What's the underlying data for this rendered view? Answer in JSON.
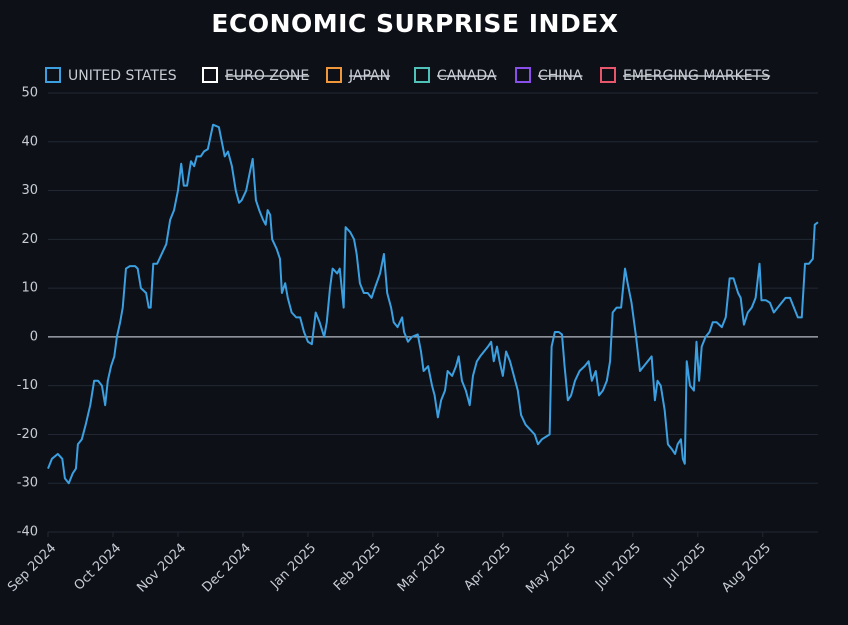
{
  "chart_data": {
    "type": "line",
    "title": "ECONOMIC SURPRISE INDEX",
    "x": [
      0,
      0.06,
      0.15,
      0.22,
      0.26,
      0.32,
      0.38,
      0.43,
      0.46,
      0.52,
      0.58,
      0.65,
      0.71,
      0.77,
      0.83,
      0.88,
      0.92,
      0.97,
      1.02,
      1.06,
      1.11,
      1.15,
      1.2,
      1.26,
      1.34,
      1.38,
      1.43,
      1.51,
      1.55,
      1.58,
      1.62,
      1.68,
      1.75,
      1.82,
      1.88,
      1.94,
      2.0,
      2.05,
      2.09,
      2.14,
      2.2,
      2.25,
      2.29,
      2.35,
      2.4,
      2.46,
      2.54,
      2.63,
      2.69,
      2.72,
      2.77,
      2.83,
      2.89,
      2.94,
      2.98,
      3.05,
      3.11,
      3.15,
      3.2,
      3.25,
      3.31,
      3.35,
      3.38,
      3.42,
      3.45,
      3.52,
      3.57,
      3.6,
      3.65,
      3.69,
      3.75,
      3.82,
      3.88,
      3.94,
      4.0,
      4.06,
      4.12,
      4.18,
      4.25,
      4.29,
      4.34,
      4.38,
      4.45,
      4.49,
      4.55,
      4.58,
      4.65,
      4.71,
      4.75,
      4.8,
      4.86,
      4.92,
      4.98,
      5.03,
      5.11,
      5.17,
      5.22,
      5.28,
      5.32,
      5.38,
      5.45,
      5.48,
      5.54,
      5.6,
      5.69,
      5.74,
      5.78,
      5.85,
      5.91,
      5.95,
      6.0,
      6.05,
      6.11,
      6.15,
      6.22,
      6.28,
      6.32,
      6.37,
      6.43,
      6.49,
      6.54,
      6.6,
      6.65,
      6.71,
      6.77,
      6.82,
      6.86,
      6.91,
      6.95,
      7.0,
      7.05,
      7.11,
      7.17,
      7.23,
      7.28,
      7.35,
      7.42,
      7.49,
      7.54,
      7.6,
      7.66,
      7.72,
      7.75,
      7.8,
      7.86,
      7.91,
      7.95,
      8.0,
      8.05,
      8.11,
      8.18,
      8.26,
      8.32,
      8.37,
      8.43,
      8.48,
      8.54,
      8.6,
      8.65,
      8.69,
      8.75,
      8.82,
      8.88,
      8.92,
      8.98,
      9.05,
      9.11,
      9.17,
      9.23,
      9.29,
      9.34,
      9.38,
      9.43,
      9.49,
      9.54,
      9.6,
      9.65,
      9.69,
      9.74,
      9.77,
      9.8,
      9.83,
      9.88,
      9.94,
      9.98,
      10.02,
      10.06,
      10.12,
      10.18,
      10.23,
      10.29,
      10.37,
      10.43,
      10.49,
      10.55,
      10.62,
      10.66,
      10.71,
      10.77,
      10.83,
      10.89,
      10.95,
      10.98,
      11.05,
      11.11,
      11.17,
      11.23,
      11.29,
      11.35,
      11.42,
      11.48,
      11.54,
      11.6,
      11.65,
      11.71,
      11.77,
      11.8,
      11.85
    ],
    "series": [
      {
        "name": "UNITED STATES",
        "color": "#3b9fe0",
        "values": [
          -27,
          -25,
          -24,
          -25,
          -29,
          -30,
          -28,
          -27,
          -22,
          -21,
          -18,
          -14,
          -9,
          -9,
          -10,
          -14,
          -9,
          -6,
          -4,
          0,
          3,
          6,
          14,
          14.5,
          14.5,
          14,
          10,
          9,
          6,
          6,
          15,
          15,
          17,
          19,
          24,
          26,
          30,
          35.5,
          31,
          31,
          36,
          35,
          37,
          37,
          38,
          38.5,
          43.5,
          43,
          39,
          37,
          38,
          35,
          30,
          27.5,
          28,
          30,
          34,
          36.5,
          28,
          26,
          24,
          23,
          26,
          25,
          20,
          18,
          16,
          9,
          11,
          8,
          5,
          4,
          4,
          1,
          -1,
          -1.5,
          5,
          3,
          0,
          3,
          10,
          14,
          13,
          14,
          6,
          22.5,
          21.5,
          20,
          17,
          11,
          9,
          9,
          8,
          10,
          13,
          17,
          9,
          6,
          3,
          2,
          4,
          1,
          -1,
          0,
          0.5,
          -3,
          -7,
          -6,
          -10,
          -12,
          -16.5,
          -13,
          -11,
          -7,
          -8,
          -6,
          -4,
          -9,
          -11,
          -14,
          -8,
          -5,
          -4,
          -3,
          -2,
          -1,
          -5,
          -2,
          -5,
          -8,
          -3,
          -5,
          -8,
          -11,
          -16,
          -18,
          -19,
          -20,
          -22,
          -21,
          -20.5,
          -20,
          -2,
          1,
          1,
          0.5,
          -6,
          -13,
          -12,
          -9,
          -7,
          -6,
          -5,
          -9,
          -7,
          -12,
          -11,
          -9,
          -5,
          5,
          6,
          6,
          14,
          11,
          7,
          0,
          -7,
          -6,
          -5,
          -4,
          -13,
          -9,
          -10,
          -15,
          -22,
          -23,
          -24,
          -22,
          -21,
          -25,
          -26,
          -5,
          -10,
          -11,
          -1,
          -9,
          -2,
          0,
          1,
          3,
          3,
          2,
          4,
          12,
          12,
          9,
          8,
          2.5,
          5,
          6,
          8,
          15,
          7.5,
          7.5,
          7,
          5,
          6,
          7,
          8,
          8,
          6,
          4,
          4,
          15,
          15,
          16,
          23,
          23.5
        ]
      },
      {
        "name": "EURO ZONE",
        "color": "#ffffff",
        "hidden": true
      },
      {
        "name": "JAPAN",
        "color": "#f0973b",
        "hidden": true
      },
      {
        "name": "CANADA",
        "color": "#4fc1b8",
        "hidden": true
      },
      {
        "name": "CHINA",
        "color": "#8a4fe8",
        "hidden": true
      },
      {
        "name": "EMERGING MARKETS",
        "color": "#e8566b",
        "hidden": true
      }
    ],
    "xlim": [
      0,
      11.85
    ],
    "xticks": [
      {
        "value": 0,
        "label": "Sep 2024"
      },
      {
        "value": 1,
        "label": "Oct 2024"
      },
      {
        "value": 2,
        "label": "Nov 2024"
      },
      {
        "value": 3,
        "label": "Dec 2024"
      },
      {
        "value": 4,
        "label": "Jan 2025"
      },
      {
        "value": 5,
        "label": "Feb 2025"
      },
      {
        "value": 6,
        "label": "Mar 2025"
      },
      {
        "value": 7,
        "label": "Apr 2025"
      },
      {
        "value": 8,
        "label": "May 2025"
      },
      {
        "value": 9,
        "label": "Jun 2025"
      },
      {
        "value": 10,
        "label": "Jul 2025"
      },
      {
        "value": 11,
        "label": "Aug 2025"
      }
    ],
    "ylim": [
      -40,
      50
    ],
    "yticks": [
      -40,
      -30,
      -20,
      -10,
      0,
      10,
      20,
      30,
      40,
      50
    ],
    "grid": true,
    "legend": "top"
  }
}
